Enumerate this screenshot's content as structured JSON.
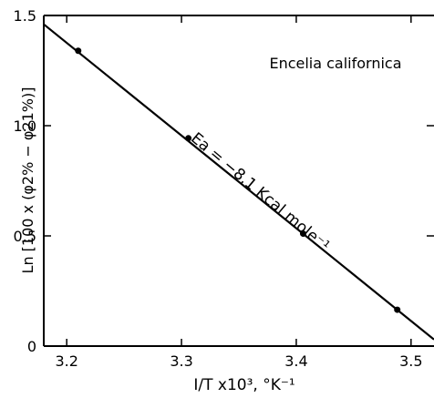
{
  "chart_data": {
    "type": "scatter",
    "xlabel": "I/T x10³, °K⁻¹",
    "ylabel": "Ln [100 x (φ2% − φ21%)]",
    "annotation_species": "Encelia californica",
    "annotation_ea": "Ea = −8.1 Kcal mole⁻¹",
    "xlim": [
      3.18,
      3.52
    ],
    "ylim": [
      0,
      1.5
    ],
    "x_ticks": [
      3.2,
      3.3,
      3.4,
      3.5
    ],
    "x_tick_labels": [
      "3.2",
      "3.3",
      "3.4",
      "3.5"
    ],
    "y_ticks": [
      0,
      0.5,
      1.0,
      1.5
    ],
    "y_tick_labels": [
      "0",
      "0.5",
      "1.0",
      "1.5"
    ],
    "grid": false,
    "series": [
      {
        "points": [
          {
            "x": 3.21,
            "y": 1.34
          },
          {
            "x": 3.306,
            "y": 0.943
          },
          {
            "x": 3.406,
            "y": 0.51
          },
          {
            "x": 3.488,
            "y": 0.165
          }
        ]
      }
    ],
    "fit_line": {
      "x": [
        3.18,
        3.52
      ],
      "y": [
        1.46,
        0.03
      ]
    }
  }
}
